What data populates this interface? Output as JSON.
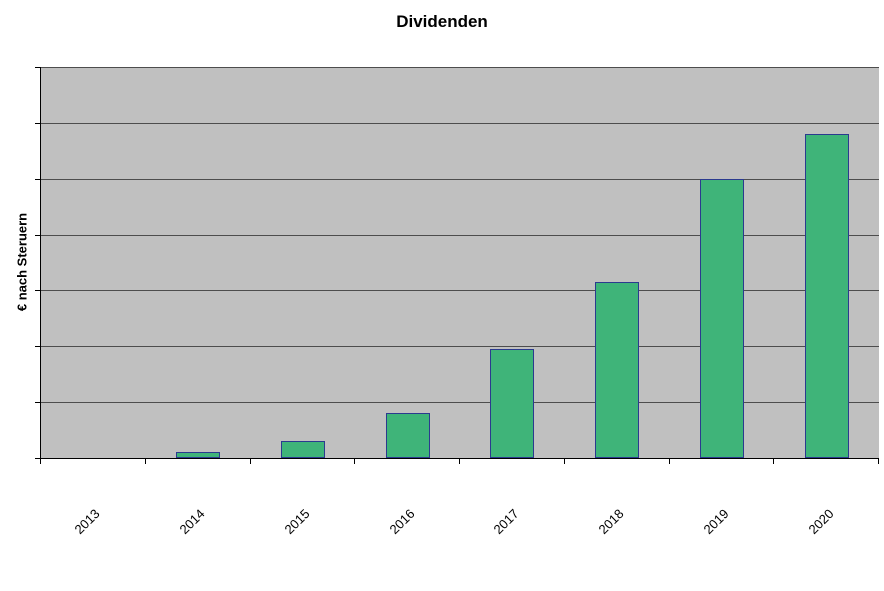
{
  "chart_data": {
    "type": "bar",
    "title": "Dividenden",
    "xlabel": "",
    "ylabel": "€ nach Steruern",
    "categories": [
      "2013",
      "2014",
      "2015",
      "2016",
      "2017",
      "2018",
      "2019",
      "2020"
    ],
    "values": [
      0,
      0.1,
      0.3,
      0.8,
      1.95,
      3.15,
      5.0,
      5.8
    ],
    "ylim": [
      0,
      7
    ],
    "gridline_count": 7,
    "grid": true,
    "legend": "none",
    "y_tick_labels_visible": false,
    "plot_bg": "#C0C0C0",
    "bar_fill": "#3FB479",
    "bar_border": "#2B3A8F",
    "x_label_rotation_deg": 45
  }
}
